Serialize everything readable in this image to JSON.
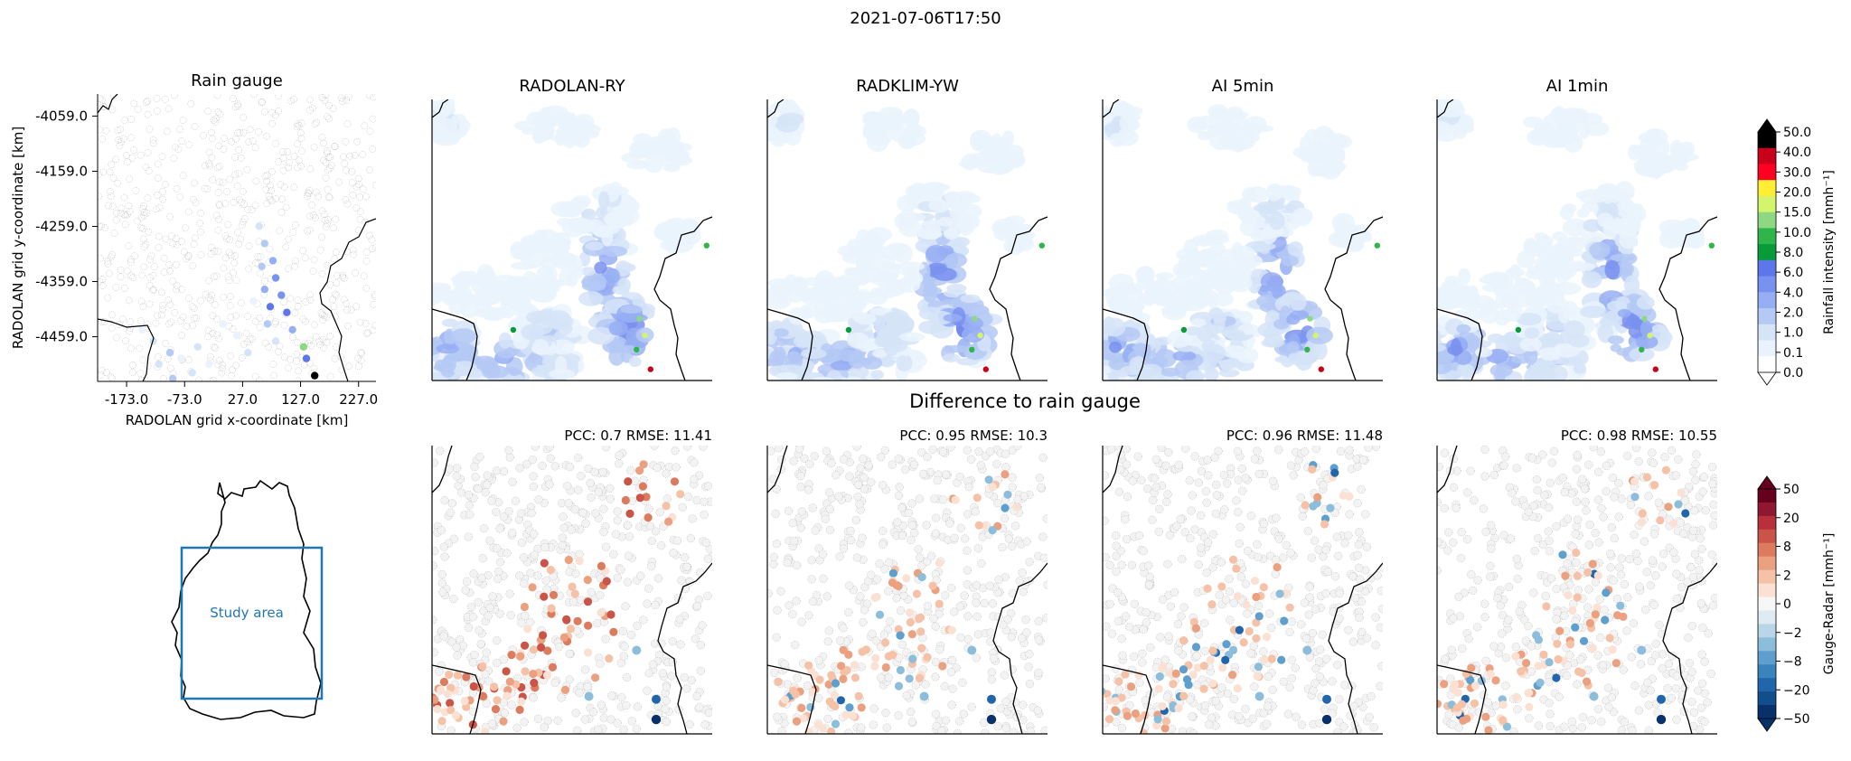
{
  "suptitle": "2021-07-06T17:50",
  "difference_heading": "Difference to rain gauge",
  "gauge_panel": {
    "title": "Rain gauge",
    "xlabel": "RADOLAN grid x-coordinate [km]",
    "ylabel": "RADOLAN grid y-coordinate [km]",
    "xticks": [
      "-173.0",
      "-73.0",
      "27.0",
      "127.0",
      "227.0"
    ],
    "yticks": [
      "-4059.0",
      "-4159.0",
      "-4259.0",
      "-4359.0",
      "-4459.0"
    ]
  },
  "inset": {
    "label": "Study area",
    "box_color": "#1f77b4"
  },
  "products": [
    {
      "title": "RADOLAN-RY",
      "stats": "PCC: 0.7 RMSE: 11.41"
    },
    {
      "title": "RADKLIM-YW",
      "stats": "PCC: 0.95 RMSE: 10.3"
    },
    {
      "title": "AI 5min",
      "stats": "PCC: 0.96 RMSE: 11.48"
    },
    {
      "title": "AI 1min",
      "stats": "PCC: 0.98 RMSE: 10.55"
    }
  ],
  "colorbar_rain": {
    "label": "Rainfall intensity [mmh⁻¹]",
    "ticks": [
      "0.0",
      "0.1",
      "1.0",
      "2.0",
      "4.0",
      "6.0",
      "8.0",
      "10.0",
      "15.0",
      "20.0",
      "30.0",
      "40.0",
      "50.0"
    ],
    "colors": [
      "#ffffff",
      "#eaf3fd",
      "#d6e4f8",
      "#b5c9f5",
      "#96aef3",
      "#7a92ef",
      "#5d76ea",
      "#079b3a",
      "#2fb64a",
      "#8fd883",
      "#d3f56b",
      "#ffee33",
      "#ff0022",
      "#c9001a",
      "#000000"
    ]
  },
  "colorbar_diff": {
    "label": "Gauge-Radar [mmh⁻¹]",
    "ticks": [
      "50",
      "20",
      "8",
      "2",
      "0",
      "−2",
      "−8",
      "−20",
      "−50"
    ],
    "colors": [
      "#08306b",
      "#124e8c",
      "#2166ac",
      "#3a84be",
      "#5e9fcd",
      "#8cbedc",
      "#b8d6e8",
      "#deebf3",
      "#f7f7f7",
      "#fbe1d3",
      "#f5c2a8",
      "#eba080",
      "#dd7b5e",
      "#cb5449",
      "#b8303b",
      "#8f1730",
      "#67001f"
    ]
  },
  "chart_data": {
    "type": "heatmap",
    "title": "2021-07-06T17:50",
    "panels": [
      "Rain gauge",
      "RADOLAN-RY",
      "RADKLIM-YW",
      "AI 5min",
      "AI 1min"
    ],
    "xlabel": "RADOLAN grid x-coordinate [km]",
    "ylabel": "RADOLAN grid y-coordinate [km]",
    "xlim": [
      -223,
      257
    ],
    "ylim": [
      -4540,
      -4019
    ],
    "difference_stats": [
      {
        "product": "RADOLAN-RY",
        "pcc": 0.7,
        "rmse": 11.41
      },
      {
        "product": "RADKLIM-YW",
        "pcc": 0.95,
        "rmse": 10.3
      },
      {
        "product": "AI 5min",
        "pcc": 0.96,
        "rmse": 11.48
      },
      {
        "product": "AI 1min",
        "pcc": 0.98,
        "rmse": 10.55
      }
    ]
  }
}
